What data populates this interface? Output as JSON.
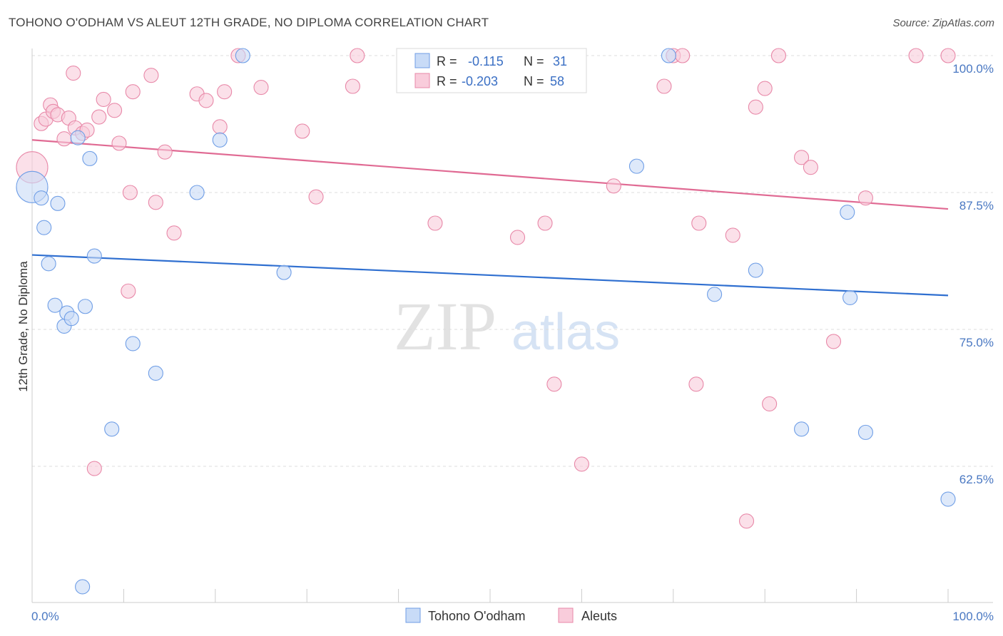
{
  "title": "TOHONO O'ODHAM VS ALEUT 12TH GRADE, NO DIPLOMA CORRELATION CHART",
  "source": "Source: ZipAtlas.com",
  "watermark": {
    "zip": "ZIP",
    "atlas": "atlas"
  },
  "chart_data": {
    "type": "scatter",
    "title": "TOHONO O'ODHAM VS ALEUT 12TH GRADE, NO DIPLOMA CORRELATION CHART",
    "xlabel": "",
    "ylabel": "12th Grade, No Diploma",
    "xlim": [
      0,
      100
    ],
    "ylim": [
      52,
      100
    ],
    "x_tick_labels": [
      "0.0%",
      "100.0%"
    ],
    "y_ticks": [
      62.5,
      75.0,
      87.5,
      100.0
    ],
    "y_tick_labels": [
      "62.5%",
      "75.0%",
      "87.5%",
      "100.0%"
    ],
    "grid": true,
    "legend_position": "top-center",
    "series": [
      {
        "name": "Tohono O'odham",
        "color": "#6f9ee6",
        "fill": "#c8dbf7",
        "R": "-0.115",
        "N": "31",
        "trend": {
          "x0": 0,
          "y0": 81.8,
          "x1": 100,
          "y1": 78.1
        },
        "points": [
          [
            0,
            88,
            22
          ],
          [
            1,
            87,
            10
          ],
          [
            1.3,
            84.3,
            10
          ],
          [
            1.8,
            81,
            10
          ],
          [
            2.5,
            77.2,
            10
          ],
          [
            2.8,
            86.5,
            10
          ],
          [
            3.5,
            75.3,
            10
          ],
          [
            3.8,
            76.5,
            10
          ],
          [
            4.3,
            76,
            10
          ],
          [
            5,
            92.5,
            10
          ],
          [
            5.5,
            51.5,
            10
          ],
          [
            5.8,
            77.1,
            10
          ],
          [
            6.3,
            90.6,
            10
          ],
          [
            6.8,
            81.7,
            10
          ],
          [
            8.7,
            65.9,
            10
          ],
          [
            11,
            73.7,
            10
          ],
          [
            13.5,
            71,
            10
          ],
          [
            18,
            87.5,
            10
          ],
          [
            20.5,
            92.3,
            10
          ],
          [
            23,
            100,
            10
          ],
          [
            27.5,
            80.2,
            10
          ],
          [
            66,
            89.9,
            10
          ],
          [
            69.5,
            100,
            10
          ],
          [
            74.5,
            78.2,
            10
          ],
          [
            79,
            80.4,
            10
          ],
          [
            84,
            65.9,
            10
          ],
          [
            89,
            85.7,
            10
          ],
          [
            89.3,
            77.9,
            10
          ],
          [
            91,
            65.6,
            10
          ],
          [
            100,
            59.5,
            10
          ]
        ]
      },
      {
        "name": "Aleuts",
        "color": "#e888a8",
        "fill": "#f9ccdb",
        "R": "-0.203",
        "N": "58",
        "trend": {
          "x0": 0,
          "y0": 92.3,
          "x1": 100,
          "y1": 86.0
        },
        "points": [
          [
            0,
            89.8,
            22
          ],
          [
            1,
            93.8,
            10
          ],
          [
            1.5,
            94.2,
            10
          ],
          [
            2,
            95.5,
            10
          ],
          [
            2.3,
            94.9,
            10
          ],
          [
            2.8,
            94.6,
            10
          ],
          [
            3.5,
            92.4,
            10
          ],
          [
            4,
            94.3,
            10
          ],
          [
            4.5,
            98.4,
            10
          ],
          [
            4.7,
            93.4,
            10
          ],
          [
            5.5,
            92.9,
            10
          ],
          [
            6,
            93.2,
            10
          ],
          [
            6.8,
            62.3,
            10
          ],
          [
            7.3,
            94.4,
            10
          ],
          [
            7.8,
            96,
            10
          ],
          [
            9,
            95,
            10
          ],
          [
            9.5,
            92,
            10
          ],
          [
            10.5,
            78.5,
            10
          ],
          [
            10.7,
            87.5,
            10
          ],
          [
            11,
            96.7,
            10
          ],
          [
            13,
            98.2,
            10
          ],
          [
            13.5,
            86.6,
            10
          ],
          [
            14.5,
            91.2,
            10
          ],
          [
            15.5,
            83.8,
            10
          ],
          [
            18,
            96.5,
            10
          ],
          [
            19,
            95.9,
            10
          ],
          [
            20.5,
            93.5,
            10
          ],
          [
            21,
            96.7,
            10
          ],
          [
            22.5,
            100,
            10
          ],
          [
            25,
            97.1,
            10
          ],
          [
            29.5,
            93.1,
            10
          ],
          [
            31,
            87.1,
            10
          ],
          [
            35,
            97.2,
            10
          ],
          [
            35.5,
            100,
            10
          ],
          [
            44,
            84.7,
            10
          ],
          [
            47.5,
            100,
            10
          ],
          [
            53,
            83.4,
            10
          ],
          [
            55,
            100,
            10
          ],
          [
            56,
            84.7,
            10
          ],
          [
            57,
            70,
            10
          ],
          [
            60,
            62.7,
            10
          ],
          [
            63.5,
            88.1,
            10
          ],
          [
            69,
            97.2,
            10
          ],
          [
            70,
            100,
            10
          ],
          [
            71,
            100,
            10
          ],
          [
            72.5,
            70,
            10
          ],
          [
            72.8,
            84.7,
            10
          ],
          [
            76.5,
            83.6,
            10
          ],
          [
            78,
            57.5,
            10
          ],
          [
            79,
            95.3,
            10
          ],
          [
            80,
            97,
            10
          ],
          [
            80.5,
            68.2,
            10
          ],
          [
            81.5,
            100,
            10
          ],
          [
            84,
            90.7,
            10
          ],
          [
            85,
            89.8,
            10
          ],
          [
            87.5,
            73.9,
            10
          ],
          [
            91,
            87,
            10
          ],
          [
            96.5,
            100,
            10
          ],
          [
            100,
            100,
            10
          ]
        ]
      }
    ]
  }
}
